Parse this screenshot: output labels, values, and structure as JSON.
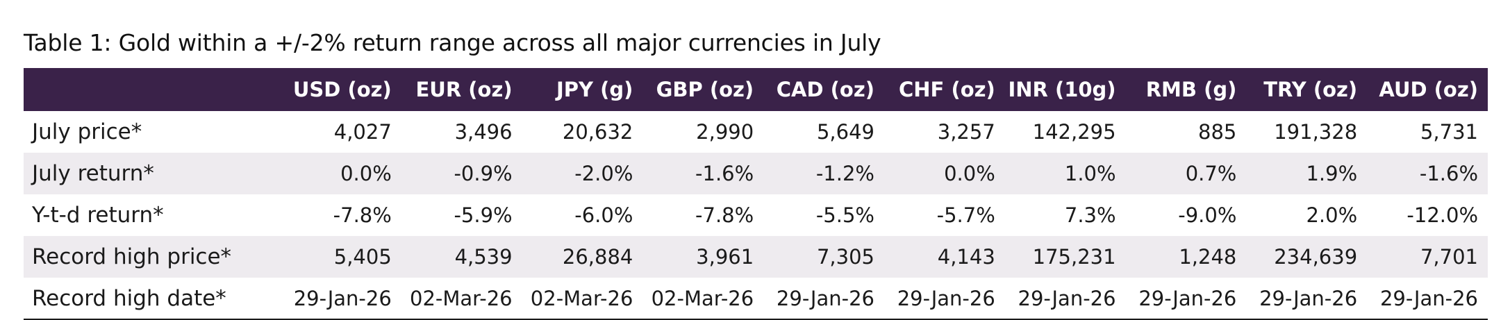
{
  "title": "Table 1: Gold within a +/-2% return range across all major currencies in July",
  "colors": {
    "header_background": "#3a2249",
    "header_text": "#ffffff",
    "stripe_background": "#eeebef"
  },
  "columns": [
    "USD (oz)",
    "EUR (oz)",
    "JPY (g)",
    "GBP (oz)",
    "CAD (oz)",
    "CHF (oz)",
    "INR (10g)",
    "RMB (g)",
    "TRY (oz)",
    "AUD (oz)"
  ],
  "rows": [
    {
      "label": "July price*",
      "values": [
        "4,027",
        "3,496",
        "20,632",
        "2,990",
        "5,649",
        "3,257",
        "142,295",
        "885",
        "191,328",
        "5,731"
      ]
    },
    {
      "label": "July return*",
      "values": [
        "0.0%",
        "-0.9%",
        "-2.0%",
        "-1.6%",
        "-1.2%",
        "0.0%",
        "1.0%",
        "0.7%",
        "1.9%",
        "-1.6%"
      ]
    },
    {
      "label": "Y-t-d return*",
      "values": [
        "-7.8%",
        "-5.9%",
        "-6.0%",
        "-7.8%",
        "-5.5%",
        "-5.7%",
        "7.3%",
        "-9.0%",
        "2.0%",
        "-12.0%"
      ]
    },
    {
      "label": "Record high price*",
      "values": [
        "5,405",
        "4,539",
        "26,884",
        "3,961",
        "7,305",
        "4,143",
        "175,231",
        "1,248",
        "234,639",
        "7,701"
      ]
    },
    {
      "label": "Record high date*",
      "values": [
        "29-Jan-26",
        "02-Mar-26",
        "02-Mar-26",
        "02-Mar-26",
        "29-Jan-26",
        "29-Jan-26",
        "29-Jan-26",
        "29-Jan-26",
        "29-Jan-26",
        "29-Jan-26"
      ]
    }
  ]
}
